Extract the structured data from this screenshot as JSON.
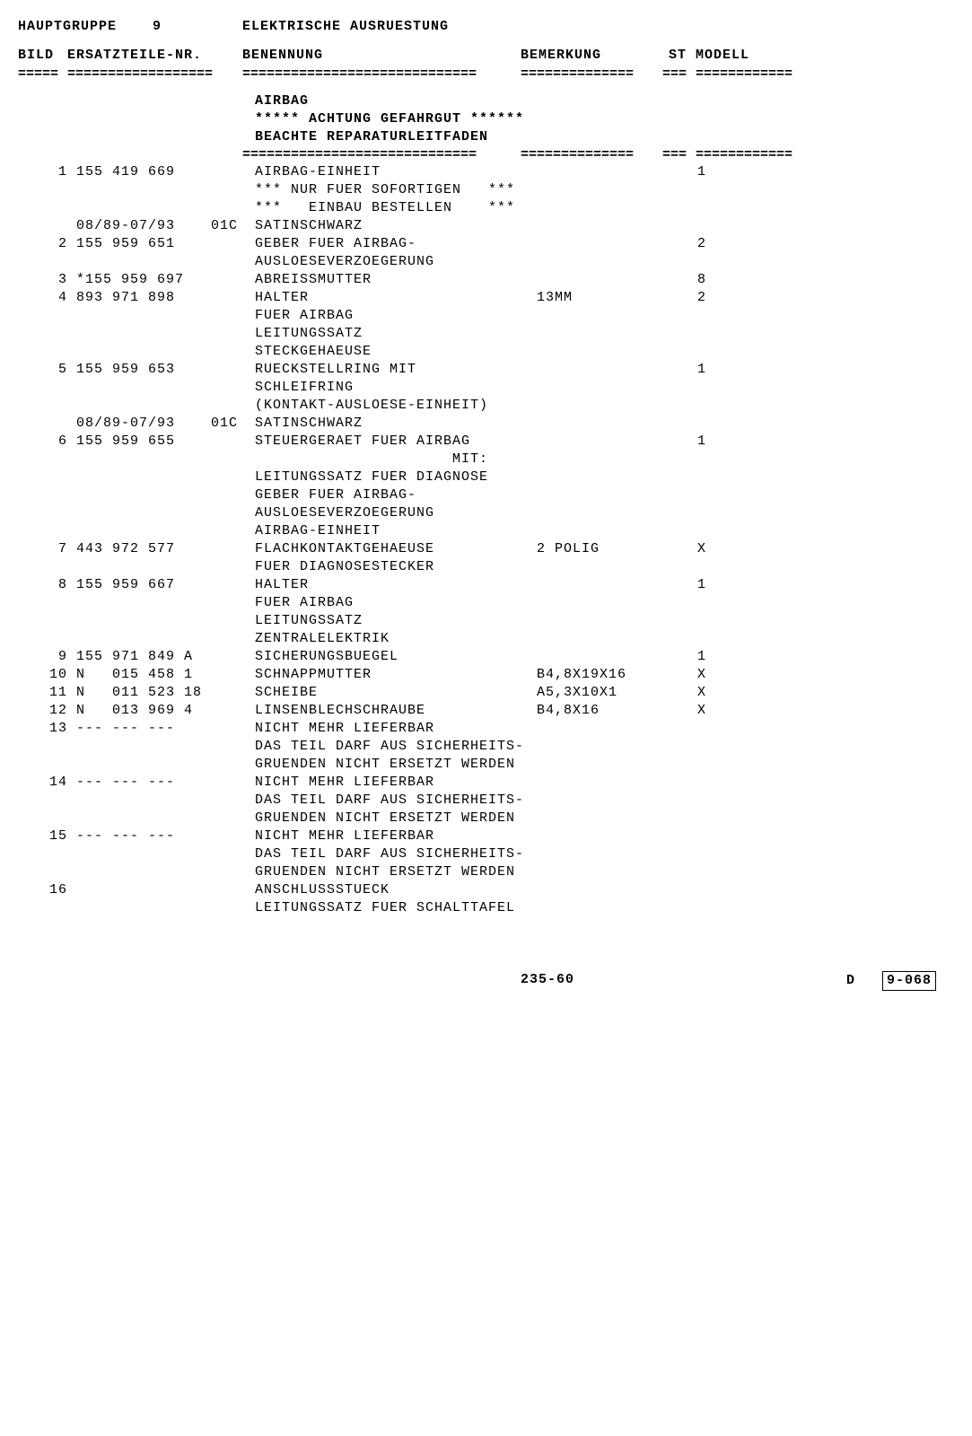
{
  "header": {
    "hauptgruppe_label": "HAUPTGRUPPE",
    "hauptgruppe_num": "9",
    "title": "ELEKTRISCHE AUSRUESTUNG"
  },
  "columns": {
    "bild": "BILD",
    "nr": "ERSATZTEILE-NR.",
    "ben": "BENENNUNG",
    "bem": "BEMERKUNG",
    "st": "ST",
    "mod": "MODELL"
  },
  "intro": [
    "AIRBAG",
    "***** ACHTUNG GEFAHRGUT ******",
    "BEACHTE REPARATURLEITFADEN"
  ],
  "rows": [
    {
      "bild": "1",
      "nr": "155 419 669",
      "ben": "AIRBAG-EINHEIT",
      "bem": "",
      "st": "1"
    },
    {
      "bild": "",
      "nr": "",
      "ben": "*** NUR FUER SOFORTIGEN   ***",
      "bem": "",
      "st": ""
    },
    {
      "bild": "",
      "nr": "",
      "ben": "***   EINBAU BESTELLEN    ***",
      "bem": "",
      "st": ""
    },
    {
      "bild": "",
      "nr": "08/89-07/93    01C",
      "ben": "SATINSCHWARZ",
      "bem": "",
      "st": ""
    },
    {
      "bild": "2",
      "nr": "155 959 651",
      "ben": "GEBER FUER AIRBAG-",
      "bem": "",
      "st": "2"
    },
    {
      "bild": "",
      "nr": "",
      "ben": "AUSLOESEVERZOEGERUNG",
      "bem": "",
      "st": ""
    },
    {
      "bild": "3",
      "nr": "*155 959 697",
      "ben": "ABREISSMUTTER",
      "bem": "",
      "st": "8"
    },
    {
      "bild": "4",
      "nr": "893 971 898",
      "ben": "HALTER",
      "bem": "13MM",
      "st": "2"
    },
    {
      "bild": "",
      "nr": "",
      "ben": "FUER AIRBAG",
      "bem": "",
      "st": ""
    },
    {
      "bild": "",
      "nr": "",
      "ben": "LEITUNGSSATZ",
      "bem": "",
      "st": ""
    },
    {
      "bild": "",
      "nr": "",
      "ben": "STECKGEHAEUSE",
      "bem": "",
      "st": ""
    },
    {
      "bild": "5",
      "nr": "155 959 653",
      "ben": "RUECKSTELLRING MIT",
      "bem": "",
      "st": "1"
    },
    {
      "bild": "",
      "nr": "",
      "ben": "SCHLEIFRING",
      "bem": "",
      "st": ""
    },
    {
      "bild": "",
      "nr": "",
      "ben": "(KONTAKT-AUSLOESE-EINHEIT)",
      "bem": "",
      "st": ""
    },
    {
      "bild": "",
      "nr": "08/89-07/93    01C",
      "ben": "SATINSCHWARZ",
      "bem": "",
      "st": ""
    },
    {
      "bild": "6",
      "nr": "155 959 655",
      "ben": "STEUERGERAET FUER AIRBAG",
      "bem": "",
      "st": "1"
    },
    {
      "bild": "",
      "nr": "",
      "ben": "                      MIT:",
      "bem": "",
      "st": ""
    },
    {
      "bild": "",
      "nr": "",
      "ben": "LEITUNGSSATZ FUER DIAGNOSE",
      "bem": "",
      "st": ""
    },
    {
      "bild": "",
      "nr": "",
      "ben": "GEBER FUER AIRBAG-",
      "bem": "",
      "st": ""
    },
    {
      "bild": "",
      "nr": "",
      "ben": "AUSLOESEVERZOEGERUNG",
      "bem": "",
      "st": ""
    },
    {
      "bild": "",
      "nr": "",
      "ben": "AIRBAG-EINHEIT",
      "bem": "",
      "st": ""
    },
    {
      "bild": "7",
      "nr": "443 972 577",
      "ben": "FLACHKONTAKTGEHAEUSE",
      "bem": "2 POLIG",
      "st": "X"
    },
    {
      "bild": "",
      "nr": "",
      "ben": "FUER DIAGNOSESTECKER",
      "bem": "",
      "st": ""
    },
    {
      "bild": "8",
      "nr": "155 959 667",
      "ben": "HALTER",
      "bem": "",
      "st": "1"
    },
    {
      "bild": "",
      "nr": "",
      "ben": "FUER AIRBAG",
      "bem": "",
      "st": ""
    },
    {
      "bild": "",
      "nr": "",
      "ben": "LEITUNGSSATZ",
      "bem": "",
      "st": ""
    },
    {
      "bild": "",
      "nr": "",
      "ben": "ZENTRALELEKTRIK",
      "bem": "",
      "st": ""
    },
    {
      "bild": "9",
      "nr": "155 971 849 A",
      "ben": "SICHERUNGSBUEGEL",
      "bem": "",
      "st": "1"
    },
    {
      "bild": "10",
      "nr": "N   015 458 1",
      "ben": "SCHNAPPMUTTER",
      "bem": "B4,8X19X16",
      "st": "X"
    },
    {
      "bild": "11",
      "nr": "N   011 523 18",
      "ben": "SCHEIBE",
      "bem": "A5,3X10X1",
      "st": "X"
    },
    {
      "bild": "12",
      "nr": "N   013 969 4",
      "ben": "LINSENBLECHSCHRAUBE",
      "bem": "B4,8X16",
      "st": "X"
    },
    {
      "bild": "13",
      "nr": "--- --- ---",
      "ben": "NICHT MEHR LIEFERBAR",
      "bem": "",
      "st": ""
    },
    {
      "bild": "",
      "nr": "",
      "ben": "DAS TEIL DARF AUS SICHERHEITS-",
      "bem": "",
      "st": ""
    },
    {
      "bild": "",
      "nr": "",
      "ben": "GRUENDEN NICHT ERSETZT WERDEN",
      "bem": "",
      "st": ""
    },
    {
      "bild": "14",
      "nr": "--- --- ---",
      "ben": "NICHT MEHR LIEFERBAR",
      "bem": "",
      "st": ""
    },
    {
      "bild": "",
      "nr": "",
      "ben": "DAS TEIL DARF AUS SICHERHEITS-",
      "bem": "",
      "st": ""
    },
    {
      "bild": "",
      "nr": "",
      "ben": "GRUENDEN NICHT ERSETZT WERDEN",
      "bem": "",
      "st": ""
    },
    {
      "bild": "15",
      "nr": "--- --- ---",
      "ben": "NICHT MEHR LIEFERBAR",
      "bem": "",
      "st": ""
    },
    {
      "bild": "",
      "nr": "",
      "ben": "DAS TEIL DARF AUS SICHERHEITS-",
      "bem": "",
      "st": ""
    },
    {
      "bild": "",
      "nr": "",
      "ben": "GRUENDEN NICHT ERSETZT WERDEN",
      "bem": "",
      "st": ""
    },
    {
      "bild": "16",
      "nr": "",
      "ben": "ANSCHLUSSSTUECK",
      "bem": "",
      "st": ""
    },
    {
      "bild": "",
      "nr": "",
      "ben": "LEITUNGSSATZ FUER SCHALTTAFEL",
      "bem": "",
      "st": ""
    }
  ],
  "footer": {
    "center": "235-60",
    "right_prefix": "D",
    "right_box": "9-068"
  },
  "rule_chars": {
    "bild": "=====",
    "nr": "==================",
    "ben": "=============================",
    "bem": "==============",
    "st": "===",
    "mod": "============"
  }
}
